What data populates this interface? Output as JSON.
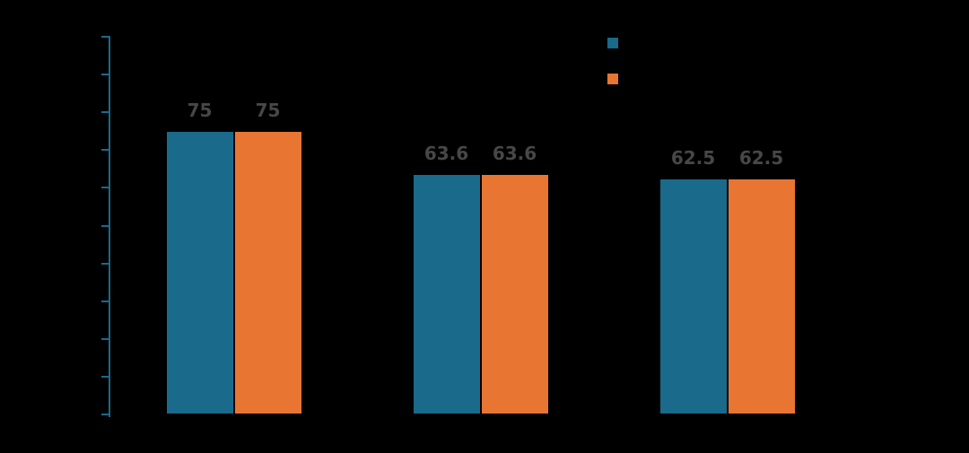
{
  "background_color": "#000000",
  "axis_color": "#196a8b",
  "value_label_color": "#474747",
  "chart_data": {
    "type": "bar",
    "title": "",
    "categories": [
      "",
      "",
      ""
    ],
    "series": [
      {
        "name": "",
        "color": "#196a8b",
        "values": [
          75,
          63.6,
          62.5
        ],
        "labels": [
          "75",
          "63.6",
          "62.5"
        ]
      },
      {
        "name": "",
        "color": "#e87531",
        "values": [
          75,
          63.6,
          62.5
        ],
        "labels": [
          "75",
          "63.6",
          "62.5"
        ]
      }
    ],
    "ylim": [
      0,
      100
    ],
    "yticks": [
      0,
      10,
      20,
      30,
      40,
      50,
      60,
      70,
      80,
      90,
      100
    ],
    "ytick_labels_visible": false,
    "grid": false,
    "legend_position": "top-right",
    "legend": {
      "items": [
        {
          "swatch_color": "#196a8b",
          "label": ""
        },
        {
          "swatch_color": "#e87531",
          "label": ""
        }
      ]
    }
  }
}
